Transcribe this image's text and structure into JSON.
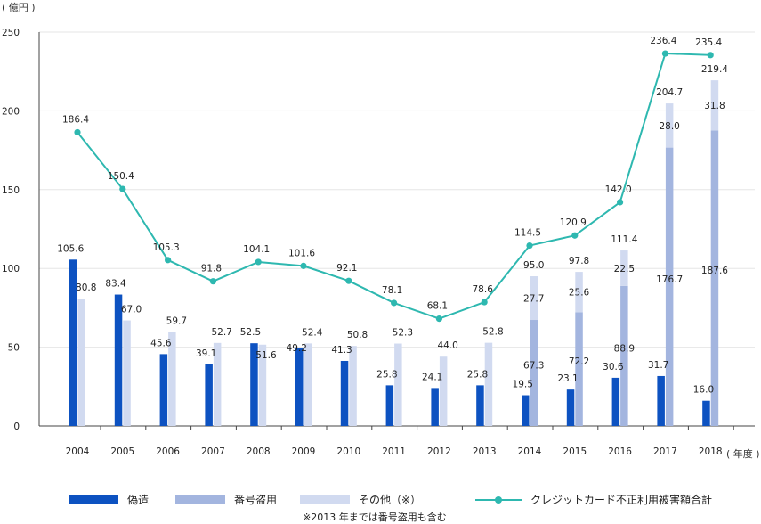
{
  "units": {
    "y": "( 億円 )",
    "x": "( 年度 )"
  },
  "colors": {
    "forgery": "#0d52c1",
    "number_theft": "#a3b5df",
    "other": "#d1daf0",
    "total": "#2eb8b0",
    "axis": "#444444",
    "grid": "#e6e6e6",
    "text": "#222222"
  },
  "legend": {
    "forgery": "偽造",
    "number_theft": "番号盗用",
    "other": "その他（※）",
    "total": "クレジットカード不正利用被害額合計",
    "note": "※2013 年までは番号盗用も含む"
  },
  "chart_data": {
    "type": "bar",
    "categories": [
      "2004",
      "2005",
      "2006",
      "2007",
      "2008",
      "2009",
      "2010",
      "2011",
      "2012",
      "2013",
      "2014",
      "2015",
      "2016",
      "2017",
      "2018"
    ],
    "ylim": [
      0,
      250
    ],
    "yticks": [
      0,
      50,
      100,
      150,
      200,
      250
    ],
    "grid": true,
    "series": [
      {
        "name": "偽造",
        "type": "bar",
        "values": [
          105.6,
          83.4,
          45.6,
          39.1,
          52.5,
          49.2,
          41.3,
          25.8,
          24.1,
          25.8,
          19.5,
          23.1,
          30.6,
          31.7,
          16.0
        ]
      },
      {
        "name": "番号盗用",
        "type": "stacked-bar",
        "values": [
          null,
          null,
          null,
          null,
          null,
          null,
          null,
          null,
          null,
          null,
          67.3,
          72.2,
          88.9,
          176.7,
          187.6
        ]
      },
      {
        "name": "その他（※）",
        "type": "stacked-bar",
        "values": [
          80.8,
          67.0,
          59.7,
          52.7,
          51.6,
          52.4,
          50.8,
          52.3,
          44.0,
          52.8,
          27.7,
          25.6,
          22.5,
          28.0,
          31.8
        ]
      },
      {
        "name": "クレジットカード不正利用被害額合計",
        "type": "line",
        "values": [
          186.4,
          150.4,
          105.3,
          91.8,
          104.1,
          101.6,
          92.1,
          78.1,
          68.1,
          78.6,
          114.5,
          120.9,
          142.0,
          236.4,
          235.4
        ]
      }
    ],
    "stack_totals": [
      null,
      null,
      null,
      null,
      null,
      null,
      null,
      null,
      null,
      null,
      95.0,
      97.8,
      111.4,
      204.7,
      219.4
    ]
  }
}
